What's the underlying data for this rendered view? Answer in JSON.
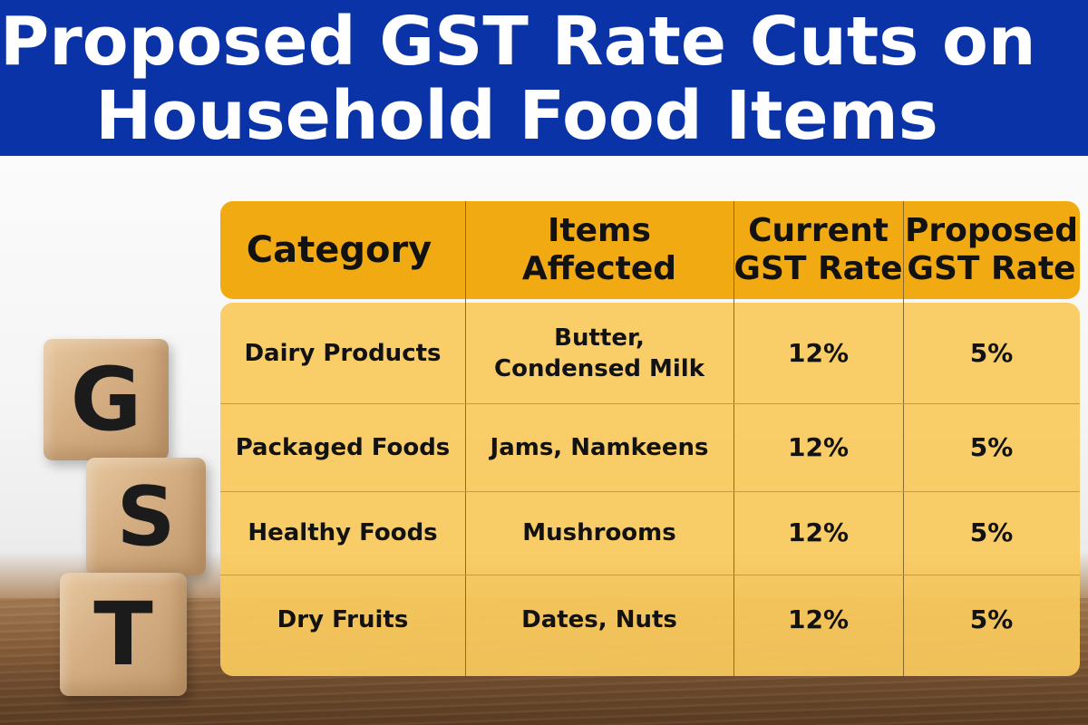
{
  "title": {
    "line1": "Proposed GST Rate Cuts on",
    "line2": "Household Food Items"
  },
  "blocks": [
    "G",
    "S",
    "T"
  ],
  "table": {
    "headers": [
      "Category",
      "Items\nAffected",
      "Current\nGST Rate",
      "Proposed\nGST Rate"
    ],
    "rows": [
      {
        "category": "Dairy Products",
        "items": "Butter,\nCondensed Milk",
        "current": "12%",
        "proposed": "5%"
      },
      {
        "category": "Packaged Foods",
        "items": "Jams, Namkeens",
        "current": "12%",
        "proposed": "5%"
      },
      {
        "category": "Healthy Foods",
        "items": "Mushrooms",
        "current": "12%",
        "proposed": "5%"
      },
      {
        "category": "Dry Fruits",
        "items": "Dates, Nuts",
        "current": "12%",
        "proposed": "5%"
      }
    ]
  },
  "colors": {
    "banner": "#0a33a8",
    "header_fill": "#f1aa12",
    "body_fill": "#f9c95c"
  }
}
